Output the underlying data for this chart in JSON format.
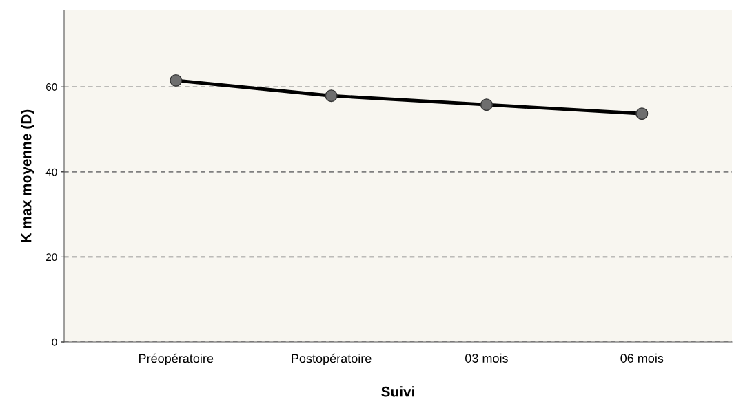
{
  "chart_data": {
    "type": "line",
    "xlabel": "Suivi",
    "ylabel": "K max moyenne (D)",
    "categories": [
      "Préopératoire",
      "Postopératoire",
      "03 mois",
      "06 mois"
    ],
    "series": [
      {
        "color": "#000000",
        "values": [
          61.5,
          57.9,
          55.8,
          53.7
        ]
      }
    ],
    "ylim": [
      0,
      78
    ],
    "yticks": [
      0,
      20,
      40,
      60
    ],
    "grid": "y",
    "marker": "circle",
    "line_style": "solid"
  }
}
